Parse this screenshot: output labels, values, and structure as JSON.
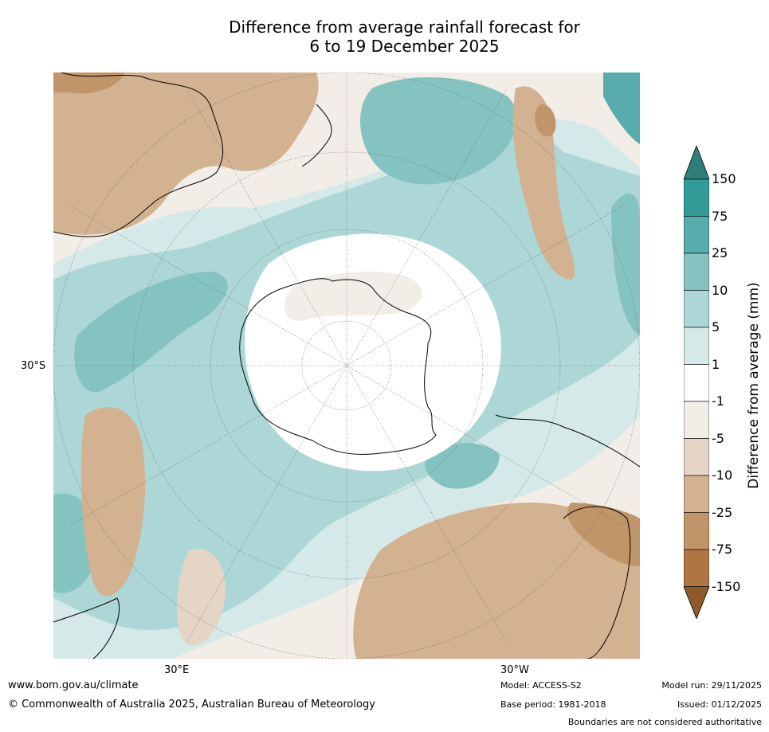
{
  "title": {
    "line1": "Difference from average rainfall forecast for",
    "line2": "6 to 19 December 2025"
  },
  "map": {
    "projection": "south-polar-stereographic",
    "lat_label": "30°S",
    "lon_labels": [
      "30°E",
      "30°W"
    ],
    "ocean_color": "#ffffff",
    "coast_color": "#000000"
  },
  "colorbar": {
    "title": "Difference from average (mm)",
    "tick_labels": [
      "150",
      "75",
      "25",
      "10",
      "5",
      "1",
      "-1",
      "-5",
      "-10",
      "-25",
      "-75",
      "-150"
    ],
    "colors": [
      "#2e7f7c",
      "#339c98",
      "#58acab",
      "#85c3c1",
      "#add7d6",
      "#d5e9e8",
      "#ffffff",
      "#f3ede8",
      "#e5d5c6",
      "#d2b291",
      "#c0956a",
      "#ad7642",
      "#8f5a2a"
    ]
  },
  "footer": {
    "url": "www.bom.gov.au/climate",
    "copyright": "© Commonwealth of Australia 2025, Australian Bureau of Meteorology",
    "model": "Model: ACCESS-S2",
    "base_period": "Base period: 1981-2018",
    "model_run": "Model run: 29/11/2025",
    "issued": "Issued: 01/12/2025",
    "disclaimer": "Boundaries are not considered authoritative"
  }
}
